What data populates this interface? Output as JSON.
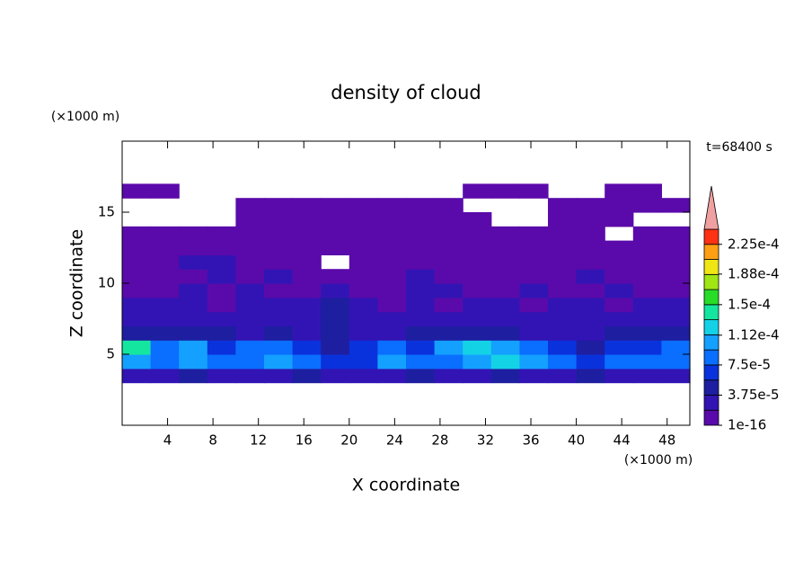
{
  "chart_data": {
    "type": "contour",
    "title": "density of cloud",
    "xlabel": "X coordinate",
    "ylabel": "Z coordinate",
    "x_unit": "(×1000 m)",
    "y_unit": "(×1000 m)",
    "time_label": "t=68400 s",
    "xlim": [
      0,
      50
    ],
    "ylim": [
      0,
      20
    ],
    "xticks": [
      4,
      8,
      12,
      16,
      20,
      24,
      28,
      32,
      36,
      40,
      44,
      48
    ],
    "yticks": [
      5,
      10,
      15
    ],
    "x": [
      1.25,
      3.75,
      6.25,
      8.75,
      11.25,
      13.75,
      16.25,
      18.75,
      21.25,
      23.75,
      26.25,
      28.75,
      31.25,
      33.75,
      36.25,
      38.75,
      41.25,
      43.75,
      46.25,
      48.75
    ],
    "y": [
      3.5,
      4.5,
      5.5,
      6.5,
      7.5,
      8.5,
      9.5,
      10.5,
      11.5,
      12.5,
      13.5,
      14.5,
      15.5,
      16.5
    ],
    "z": [
      [
        3e-05,
        3e-05,
        4e-05,
        3e-05,
        3e-05,
        3e-05,
        4e-05,
        3e-05,
        3e-05,
        3e-05,
        4e-05,
        3e-05,
        3e-05,
        4e-05,
        3e-05,
        3e-05,
        4e-05,
        3e-05,
        3e-05,
        3e-05
      ],
      [
        0.00011,
        9e-05,
        0.00011,
        8e-05,
        9e-05,
        0.0001,
        8e-05,
        6e-05,
        7e-05,
        0.0001,
        8e-05,
        9e-05,
        0.00011,
        0.00012,
        0.00011,
        9e-05,
        7e-05,
        9e-05,
        8e-05,
        9e-05
      ],
      [
        0.00014,
        8e-05,
        0.0001,
        7e-05,
        8e-05,
        9e-05,
        7e-05,
        5e-05,
        6e-05,
        8e-05,
        7e-05,
        0.0001,
        0.00012,
        0.0001,
        9e-05,
        6e-05,
        5e-05,
        7e-05,
        6e-05,
        8e-05
      ],
      [
        5e-05,
        4e-05,
        4e-05,
        4e-05,
        3e-05,
        4e-05,
        3e-05,
        4e-05,
        3e-05,
        3e-05,
        4e-05,
        5e-05,
        4e-05,
        4e-05,
        3e-05,
        3e-05,
        3e-05,
        4e-05,
        4e-05,
        4e-05
      ],
      [
        3e-05,
        2e-05,
        3e-05,
        2e-05,
        3e-05,
        2e-05,
        2e-05,
        4e-05,
        2e-05,
        2e-05,
        3e-05,
        2e-05,
        3e-05,
        2e-05,
        3e-05,
        3e-05,
        2e-05,
        2e-05,
        3e-05,
        3e-05
      ],
      [
        2e-05,
        2e-05,
        2e-05,
        1.5e-05,
        2e-05,
        2e-05,
        2e-05,
        5e-05,
        2e-05,
        1.5e-05,
        2e-05,
        1.5e-05,
        2e-05,
        2e-05,
        1.5e-05,
        2e-05,
        2e-05,
        1.5e-05,
        2e-05,
        2e-05
      ],
      [
        1.5e-05,
        1e-05,
        2e-05,
        1.5e-05,
        2e-05,
        1e-05,
        1.5e-05,
        3e-05,
        1.5e-05,
        1e-05,
        2e-05,
        2e-05,
        1.5e-05,
        1e-05,
        2e-05,
        1.5e-05,
        1e-05,
        2e-05,
        1.5e-05,
        1e-05
      ],
      [
        1e-05,
        1e-05,
        1.5e-05,
        2e-05,
        1.5e-05,
        2e-05,
        1e-05,
        1e-05,
        1e-05,
        8e-06,
        2e-05,
        1e-05,
        1e-05,
        1.5e-05,
        1e-05,
        1e-05,
        2e-05,
        1e-05,
        1e-05,
        1e-05
      ],
      [
        8e-06,
        1e-05,
        2e-05,
        2e-05,
        1.5e-05,
        1e-05,
        8e-06,
        null,
        5e-06,
        5e-06,
        1e-05,
        8e-06,
        8e-06,
        1e-05,
        1e-05,
        5e-06,
        8e-06,
        1e-05,
        8e-06,
        5e-06
      ],
      [
        5e-06,
        5e-06,
        8e-06,
        8e-06,
        5e-06,
        5e-06,
        5e-06,
        5e-06,
        5e-06,
        3e-06,
        5e-06,
        5e-06,
        3e-06,
        5e-06,
        5e-06,
        3e-06,
        5e-06,
        5e-06,
        3e-06,
        5e-06
      ],
      [
        3e-06,
        3e-06,
        3e-06,
        3e-06,
        3e-06,
        3e-06,
        3e-06,
        3e-06,
        3e-06,
        3e-06,
        3e-06,
        3e-06,
        3e-06,
        3e-06,
        3e-06,
        3e-06,
        3e-06,
        null,
        3e-06,
        3e-06
      ],
      [
        null,
        null,
        null,
        null,
        2e-06,
        2e-06,
        2e-06,
        2e-06,
        2e-06,
        2e-06,
        2e-06,
        2e-06,
        2e-06,
        null,
        null,
        2e-06,
        2e-06,
        2e-06,
        null,
        null
      ],
      [
        null,
        null,
        null,
        null,
        2e-06,
        2e-06,
        2e-06,
        2e-06,
        2e-06,
        2e-06,
        2e-06,
        2e-06,
        null,
        null,
        null,
        2e-06,
        2e-06,
        2e-06,
        2e-06,
        2e-06
      ],
      [
        1e-06,
        1e-06,
        null,
        null,
        null,
        null,
        null,
        null,
        null,
        null,
        null,
        null,
        1e-06,
        1e-06,
        1e-06,
        null,
        null,
        1e-06,
        1e-06,
        null
      ]
    ],
    "colorbar": {
      "levels": [
        1e-16,
        1.875e-05,
        3.75e-05,
        5.625e-05,
        7.5e-05,
        9.375e-05,
        0.0001125,
        0.00013125,
        0.00015,
        0.00016875,
        0.0001875,
        0.00020625,
        0.000225,
        0.00024375
      ],
      "colors": [
        "#5a0aaa",
        "#3214b4",
        "#1e1ea0",
        "#0a32dc",
        "#0a6eff",
        "#14a0ff",
        "#14d2e6",
        "#14e6a0",
        "#28dc28",
        "#a0e614",
        "#f0e614",
        "#ffa014",
        "#ff3214"
      ],
      "over_color": "#f0a0a0",
      "ticks": [
        {
          "value": 1e-16,
          "label": "1e-16"
        },
        {
          "value": 3.75e-05,
          "label": "3.75e-5"
        },
        {
          "value": 7.5e-05,
          "label": "7.5e-5"
        },
        {
          "value": 0.000112,
          "label": "1.12e-4"
        },
        {
          "value": 0.00015,
          "label": "1.5e-4"
        },
        {
          "value": 0.000188,
          "label": "1.88e-4"
        },
        {
          "value": 0.000225,
          "label": "2.25e-4"
        }
      ]
    }
  }
}
